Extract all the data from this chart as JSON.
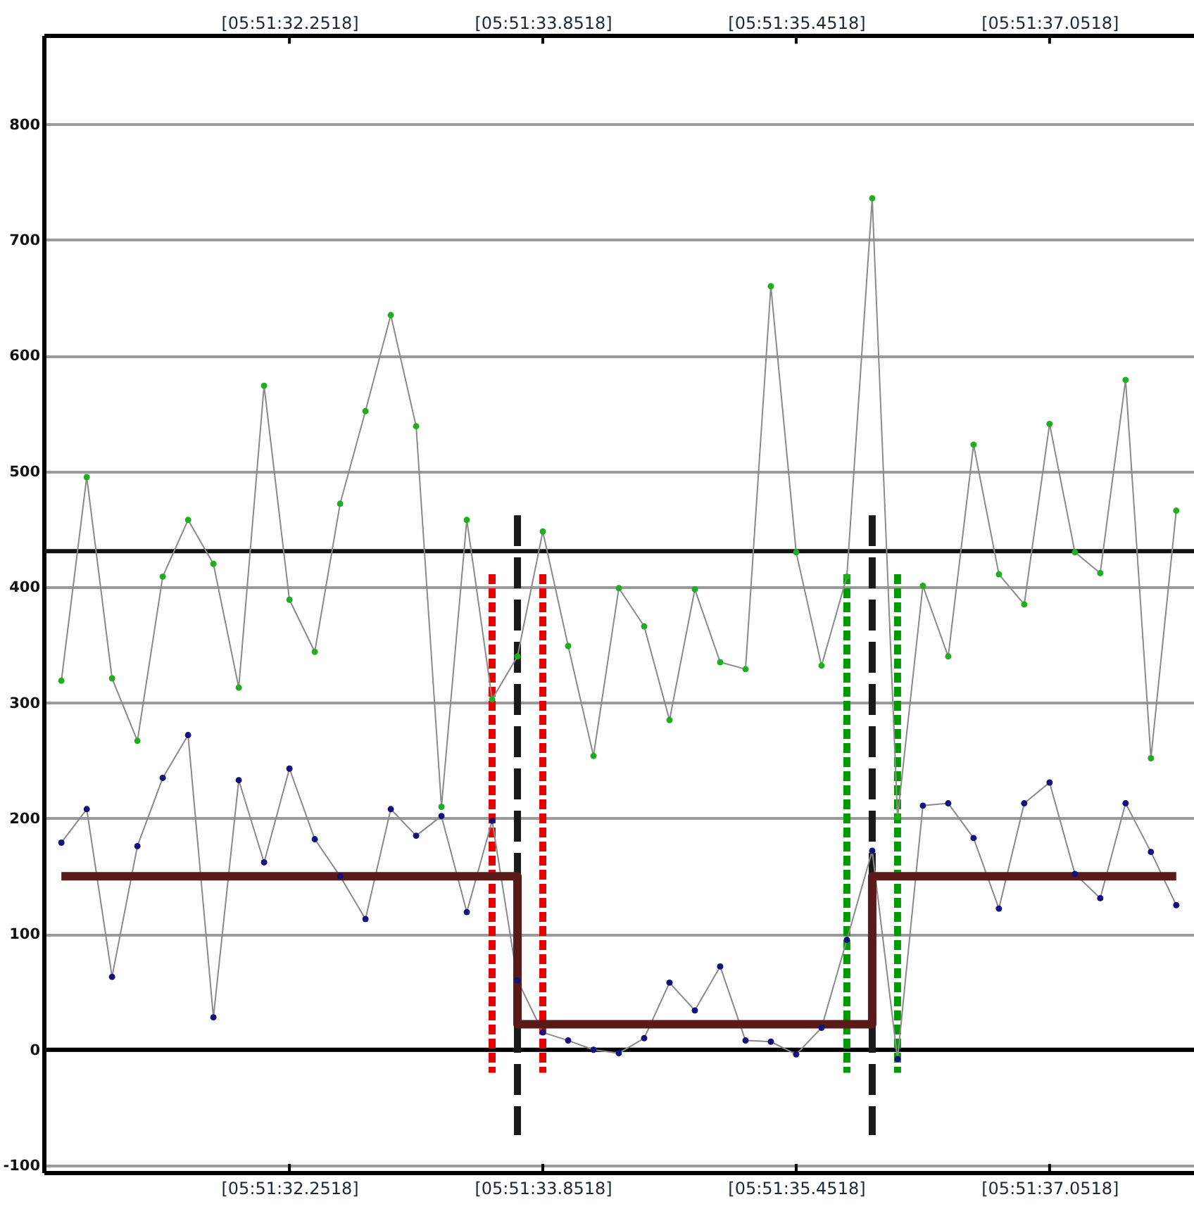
{
  "chart_data": {
    "type": "line",
    "categories": [
      null,
      null,
      null,
      null,
      null,
      null,
      null,
      null,
      null,
      "[05:51:32.2518]",
      null,
      null,
      null,
      null,
      null,
      null,
      null,
      null,
      null,
      "[05:51:33.8518]",
      null,
      null,
      null,
      null,
      null,
      null,
      null,
      null,
      null,
      "[05:51:35.4518]",
      null,
      null,
      null,
      null,
      null,
      null,
      null,
      null,
      null,
      "[05:51:37.0518]",
      null,
      null,
      null,
      null,
      null
    ],
    "ylim": [
      -106,
      877
    ],
    "yticks": [
      -100,
      0,
      100,
      200,
      300,
      400,
      500,
      600,
      700,
      800
    ],
    "grid": "y",
    "marker": "circle",
    "ref_lines": [
      {
        "axis": "y",
        "value": 0,
        "color": "#000000"
      },
      {
        "axis": "y",
        "value": 431,
        "color": "#111111"
      }
    ],
    "series": [
      {
        "color": "#1fae1f",
        "values": [
          319,
          495,
          321,
          267,
          409,
          458,
          420,
          313,
          574,
          389,
          344,
          472,
          552,
          635,
          539,
          210,
          458,
          303,
          340,
          448,
          349,
          254,
          399,
          366,
          285,
          398,
          335,
          329,
          660,
          430,
          332,
          409,
          736,
          201,
          401,
          340,
          523,
          411,
          385,
          541,
          430,
          412,
          579,
          252,
          466
        ]
      },
      {
        "color": "#12127e",
        "values": [
          179,
          208,
          63,
          176,
          235,
          272,
          28,
          233,
          162,
          243,
          182,
          150,
          113,
          208,
          185,
          202,
          119,
          198,
          60,
          15,
          8,
          0,
          -3,
          10,
          58,
          34,
          72,
          8,
          7,
          -4,
          19,
          95,
          172,
          -8,
          211,
          213,
          183,
          122,
          213,
          231,
          152,
          131,
          213,
          171,
          125
        ]
      },
      {
        "type": "step",
        "color": "#5b1a1a",
        "marker": "none",
        "values": [
          150,
          150,
          150,
          150,
          150,
          150,
          150,
          150,
          150,
          150,
          150,
          150,
          150,
          150,
          150,
          150,
          150,
          150,
          22,
          22,
          22,
          22,
          22,
          22,
          22,
          22,
          22,
          22,
          22,
          22,
          22,
          22,
          150,
          150,
          150,
          150,
          150,
          150,
          150,
          150,
          150,
          150,
          150,
          150,
          150
        ]
      },
      {
        "type": "bar",
        "color": "#e60000",
        "line_style": "dotted",
        "base": [
          null,
          null,
          null,
          null,
          null,
          null,
          null,
          null,
          null,
          null,
          null,
          null,
          null,
          null,
          null,
          null,
          null,
          -20,
          null,
          -20,
          null,
          null,
          null,
          null,
          null,
          null,
          null,
          null,
          null,
          null,
          null,
          null,
          null,
          null,
          null,
          null,
          null,
          null,
          null,
          null,
          null,
          null,
          null,
          null,
          null
        ],
        "values": [
          null,
          null,
          null,
          null,
          null,
          null,
          null,
          null,
          null,
          null,
          null,
          null,
          null,
          null,
          null,
          null,
          null,
          431,
          null,
          431,
          null,
          null,
          null,
          null,
          null,
          null,
          null,
          null,
          null,
          null,
          null,
          null,
          null,
          null,
          null,
          null,
          null,
          null,
          null,
          null,
          null,
          null,
          null,
          null,
          null
        ]
      },
      {
        "type": "bar",
        "color": "#1a1a1a",
        "line_style": "dashed",
        "base": [
          null,
          null,
          null,
          null,
          null,
          null,
          null,
          null,
          null,
          null,
          null,
          null,
          null,
          null,
          null,
          null,
          null,
          null,
          -74,
          null,
          null,
          null,
          null,
          null,
          null,
          null,
          null,
          null,
          null,
          null,
          null,
          null,
          -74,
          null,
          null,
          null,
          null,
          null,
          null,
          null,
          null,
          null,
          null,
          null,
          null
        ],
        "values": [
          null,
          null,
          null,
          null,
          null,
          null,
          null,
          null,
          null,
          null,
          null,
          null,
          null,
          null,
          null,
          null,
          null,
          null,
          536,
          null,
          null,
          null,
          null,
          null,
          null,
          null,
          null,
          null,
          null,
          null,
          null,
          null,
          536,
          null,
          null,
          null,
          null,
          null,
          null,
          null,
          null,
          null,
          null,
          null,
          null
        ]
      },
      {
        "type": "bar",
        "color": "#009a00",
        "line_style": "dotted",
        "base": [
          null,
          null,
          null,
          null,
          null,
          null,
          null,
          null,
          null,
          null,
          null,
          null,
          null,
          null,
          null,
          null,
          null,
          null,
          null,
          null,
          null,
          null,
          null,
          null,
          null,
          null,
          null,
          null,
          null,
          null,
          null,
          -20,
          null,
          -20,
          null,
          null,
          null,
          null,
          null,
          null,
          null,
          null,
          null,
          null,
          null
        ],
        "values": [
          null,
          null,
          null,
          null,
          null,
          null,
          null,
          null,
          null,
          null,
          null,
          null,
          null,
          null,
          null,
          null,
          null,
          null,
          null,
          null,
          null,
          null,
          null,
          null,
          null,
          null,
          null,
          null,
          null,
          null,
          null,
          431,
          null,
          431,
          null,
          null,
          null,
          null,
          null,
          null,
          null,
          null,
          null,
          null,
          null
        ]
      }
    ]
  }
}
